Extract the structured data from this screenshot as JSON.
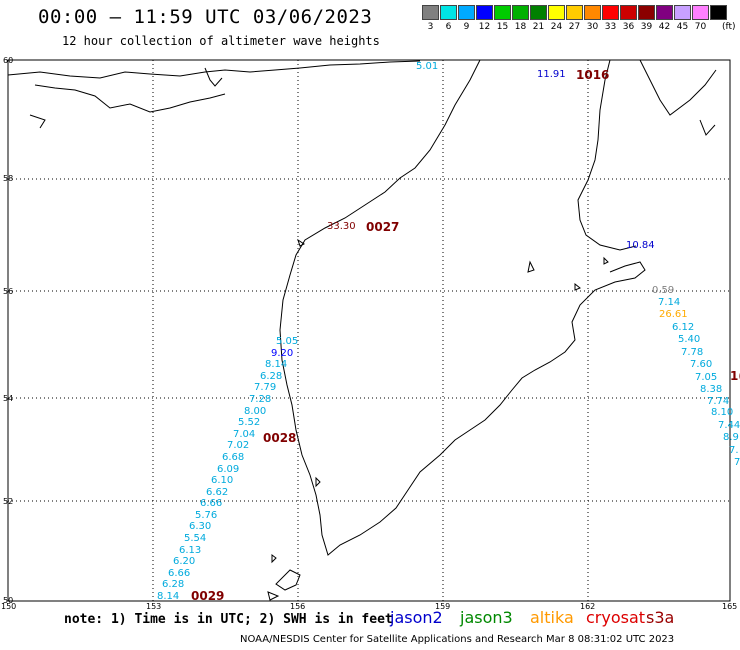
{
  "header": {
    "title": "00:00 – 11:59 UTC 03/06/2023",
    "subtitle": "12 hour collection of altimeter wave heights"
  },
  "legend": {
    "unit_label": "(ft)",
    "entries": [
      {
        "label": "3",
        "color": "#808080"
      },
      {
        "label": "6",
        "color": "#00e5e5"
      },
      {
        "label": "9",
        "color": "#00aaff"
      },
      {
        "label": "12",
        "color": "#0000ff"
      },
      {
        "label": "15",
        "color": "#00cc00"
      },
      {
        "label": "18",
        "color": "#00b000"
      },
      {
        "label": "21",
        "color": "#008000"
      },
      {
        "label": "24",
        "color": "#ffff00"
      },
      {
        "label": "27",
        "color": "#ffcc00"
      },
      {
        "label": "30",
        "color": "#ff8800"
      },
      {
        "label": "33",
        "color": "#ff0000"
      },
      {
        "label": "36",
        "color": "#cc0000"
      },
      {
        "label": "39",
        "color": "#8b0000"
      },
      {
        "label": "42",
        "color": "#800080"
      },
      {
        "label": "45",
        "color": "#c8a0ff"
      },
      {
        "label": "70",
        "color": "#ff80ff"
      },
      {
        "label": "",
        "color": "#000000"
      }
    ]
  },
  "axes": {
    "lat_labels": [
      "60",
      "58",
      "56",
      "54",
      "52",
      "50"
    ],
    "lon_labels": [
      "150",
      "153",
      "156",
      "159",
      "162",
      "165"
    ]
  },
  "tracks": {
    "track_a_ids": {
      "top": "0027",
      "mid": "0028",
      "bottom": "0029"
    },
    "track_a_values": [
      "5.05",
      "9.20",
      "8.14",
      "6.28",
      "7.79",
      "7.28",
      "8.00",
      "5.52",
      "7.04",
      "7.02",
      "6.68",
      "6.09",
      "6.10",
      "6.62",
      "6.66",
      "5.76",
      "6.30",
      "5.54",
      "6.13",
      "6.20",
      "6.66",
      "6.28",
      "8.14"
    ],
    "track_a_top_value": "33.30",
    "track_b_id": "1016",
    "track_b_top_values": [
      "11.91",
      "5.01"
    ],
    "track_b_values": [
      "10.84",
      "0.59",
      "7.14",
      "26.61",
      "6.12",
      "5.40",
      "7.78",
      "7.60",
      "7.05",
      "8.38",
      "7.74",
      "8.10",
      "7.44",
      "8.9",
      "7.",
      "7"
    ],
    "track_c_id": "1("
  },
  "footer": {
    "note": "note: 1) Time is in UTC; 2) SWH is in feet",
    "satellites": [
      {
        "name": "jason2",
        "color": "#0000cc"
      },
      {
        "name": "jason3",
        "color": "#008800"
      },
      {
        "name": "altika",
        "color": "#ff9900"
      },
      {
        "name": "cryosat",
        "color": "#dd0000"
      },
      {
        "name": "s3a",
        "color": "#990000"
      }
    ],
    "credit": "NOAA/NESDIS Center for Satellite Applications and Research    Mar  8 08:31:02 UTC 2023"
  }
}
